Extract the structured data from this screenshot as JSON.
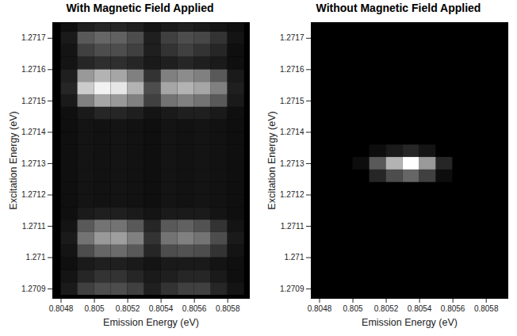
{
  "chart_data": [
    {
      "type": "heatmap",
      "title": "With Magnetic Field Applied",
      "x_label": "Emission Energy (eV)",
      "y_label": "Excitation Energy (eV)",
      "xlim": [
        0.80475,
        0.80593
      ],
      "ylim": [
        1.27087,
        1.27175
      ],
      "xticks": [
        0.8048,
        0.805,
        0.8052,
        0.8054,
        0.8056,
        0.8058
      ],
      "yticks": [
        1.2709,
        1.271,
        1.2711,
        1.2712,
        1.2713,
        1.2714,
        1.2715,
        1.2716,
        1.2717
      ],
      "zlim": [
        0,
        1
      ],
      "cells": {
        "x": [
          0.80485,
          0.80495,
          0.80505,
          0.80515,
          0.80525,
          0.80535,
          0.80545,
          0.80555,
          0.80565,
          0.80575,
          0.80585
        ],
        "y": [
          1.2709,
          1.27094,
          1.27098,
          1.27102,
          1.27106,
          1.2711,
          1.27114,
          1.27118,
          1.27122,
          1.27126,
          1.2713,
          1.27134,
          1.27138,
          1.27142,
          1.27146,
          1.2715,
          1.27154,
          1.27158,
          1.27162,
          1.27166,
          1.2717,
          1.27174
        ],
        "z": [
          [
            0.1,
            0.25,
            0.3,
            0.3,
            0.25,
            0.12,
            0.2,
            0.25,
            0.25,
            0.15,
            0.08
          ],
          [
            0.08,
            0.15,
            0.2,
            0.2,
            0.15,
            0.1,
            0.12,
            0.15,
            0.15,
            0.1,
            0.06
          ],
          [
            0.06,
            0.1,
            0.12,
            0.12,
            0.1,
            0.08,
            0.1,
            0.1,
            0.1,
            0.08,
            0.06
          ],
          [
            0.08,
            0.3,
            0.4,
            0.42,
            0.35,
            0.15,
            0.3,
            0.32,
            0.3,
            0.2,
            0.08
          ],
          [
            0.1,
            0.45,
            0.6,
            0.62,
            0.5,
            0.2,
            0.45,
            0.5,
            0.45,
            0.3,
            0.1
          ],
          [
            0.08,
            0.35,
            0.45,
            0.45,
            0.35,
            0.15,
            0.35,
            0.38,
            0.32,
            0.2,
            0.08
          ],
          [
            0.06,
            0.1,
            0.12,
            0.12,
            0.1,
            0.08,
            0.1,
            0.1,
            0.1,
            0.08,
            0.06
          ],
          [
            0.06,
            0.08,
            0.07,
            0.08,
            0.07,
            0.06,
            0.08,
            0.07,
            0.08,
            0.07,
            0.06
          ],
          [
            0.06,
            0.08,
            0.07,
            0.08,
            0.07,
            0.06,
            0.08,
            0.07,
            0.08,
            0.07,
            0.06
          ],
          [
            0.06,
            0.08,
            0.07,
            0.08,
            0.07,
            0.06,
            0.08,
            0.07,
            0.08,
            0.07,
            0.06
          ],
          [
            0.06,
            0.08,
            0.07,
            0.08,
            0.07,
            0.06,
            0.08,
            0.07,
            0.08,
            0.07,
            0.06
          ],
          [
            0.06,
            0.08,
            0.07,
            0.08,
            0.07,
            0.06,
            0.08,
            0.07,
            0.08,
            0.07,
            0.06
          ],
          [
            0.06,
            0.08,
            0.07,
            0.08,
            0.07,
            0.06,
            0.08,
            0.07,
            0.08,
            0.07,
            0.06
          ],
          [
            0.06,
            0.08,
            0.07,
            0.08,
            0.07,
            0.06,
            0.08,
            0.07,
            0.08,
            0.07,
            0.06
          ],
          [
            0.06,
            0.1,
            0.15,
            0.15,
            0.12,
            0.08,
            0.1,
            0.12,
            0.12,
            0.1,
            0.06
          ],
          [
            0.1,
            0.5,
            0.65,
            0.6,
            0.5,
            0.25,
            0.45,
            0.5,
            0.45,
            0.35,
            0.1
          ],
          [
            0.15,
            0.8,
            0.95,
            0.9,
            0.7,
            0.3,
            0.65,
            0.7,
            0.65,
            0.5,
            0.12
          ],
          [
            0.12,
            0.6,
            0.7,
            0.65,
            0.5,
            0.2,
            0.5,
            0.55,
            0.5,
            0.35,
            0.1
          ],
          [
            0.08,
            0.15,
            0.18,
            0.18,
            0.15,
            0.1,
            0.12,
            0.15,
            0.12,
            0.1,
            0.06
          ],
          [
            0.08,
            0.25,
            0.3,
            0.3,
            0.25,
            0.12,
            0.2,
            0.25,
            0.2,
            0.15,
            0.06
          ],
          [
            0.1,
            0.35,
            0.4,
            0.38,
            0.3,
            0.12,
            0.25,
            0.3,
            0.28,
            0.2,
            0.08
          ],
          [
            0.06,
            0.12,
            0.15,
            0.15,
            0.12,
            0.08,
            0.1,
            0.12,
            0.1,
            0.08,
            0.06
          ]
        ]
      }
    },
    {
      "type": "heatmap",
      "title": "Without Magnetic Field Applied",
      "x_label": "Emission Energy (eV)",
      "y_label": "Excitation Energy (eV)",
      "xlim": [
        0.80475,
        0.80593
      ],
      "ylim": [
        1.27087,
        1.27175
      ],
      "xticks": [
        0.805,
        0.8052,
        0.8054,
        0.8056,
        0.8058,
        0.8048
      ],
      "yticks": [
        1.2709,
        1.271,
        1.2711,
        1.2712,
        1.2713,
        1.2714,
        1.2715,
        1.2716,
        1.2717
      ],
      "zlim": [
        0,
        1
      ],
      "cells": {
        "x": [
          0.80485,
          0.80495,
          0.80505,
          0.80515,
          0.80525,
          0.80535,
          0.80545,
          0.80555,
          0.80565,
          0.80575,
          0.80585
        ],
        "y": [
          1.2709,
          1.27094,
          1.27098,
          1.27102,
          1.27106,
          1.2711,
          1.27114,
          1.27118,
          1.27122,
          1.27126,
          1.2713,
          1.27134,
          1.27138,
          1.27142,
          1.27146,
          1.2715,
          1.27154,
          1.27158,
          1.27162,
          1.27166,
          1.2717,
          1.27174
        ],
        "z": [
          [
            0,
            0,
            0,
            0,
            0,
            0,
            0,
            0,
            0,
            0,
            0
          ],
          [
            0,
            0,
            0,
            0,
            0,
            0,
            0,
            0,
            0,
            0,
            0
          ],
          [
            0,
            0,
            0,
            0,
            0,
            0,
            0,
            0,
            0,
            0,
            0
          ],
          [
            0,
            0,
            0,
            0,
            0,
            0,
            0,
            0,
            0,
            0,
            0
          ],
          [
            0,
            0,
            0,
            0,
            0,
            0,
            0,
            0,
            0,
            0,
            0
          ],
          [
            0,
            0,
            0,
            0,
            0,
            0,
            0,
            0,
            0,
            0,
            0
          ],
          [
            0,
            0,
            0,
            0,
            0,
            0,
            0,
            0,
            0,
            0,
            0
          ],
          [
            0,
            0,
            0,
            0,
            0,
            0,
            0,
            0,
            0,
            0,
            0
          ],
          [
            0,
            0,
            0,
            0,
            0,
            0,
            0,
            0,
            0,
            0,
            0
          ],
          [
            0,
            0,
            0,
            0.15,
            0.3,
            0.4,
            0.25,
            0.05,
            0,
            0,
            0
          ],
          [
            0,
            0,
            0.05,
            0.35,
            0.7,
            1,
            0.6,
            0.15,
            0,
            0,
            0
          ],
          [
            0,
            0,
            0,
            0.05,
            0.1,
            0.15,
            0.08,
            0,
            0,
            0,
            0
          ],
          [
            0,
            0,
            0,
            0,
            0,
            0,
            0,
            0,
            0,
            0,
            0
          ],
          [
            0,
            0,
            0,
            0,
            0,
            0,
            0,
            0,
            0,
            0,
            0
          ],
          [
            0,
            0,
            0,
            0,
            0,
            0,
            0,
            0,
            0,
            0,
            0
          ],
          [
            0,
            0,
            0,
            0,
            0,
            0,
            0,
            0,
            0,
            0,
            0
          ],
          [
            0,
            0,
            0,
            0,
            0,
            0,
            0,
            0,
            0,
            0,
            0
          ],
          [
            0,
            0,
            0,
            0,
            0,
            0,
            0,
            0,
            0,
            0,
            0
          ],
          [
            0,
            0,
            0,
            0,
            0,
            0,
            0,
            0,
            0,
            0,
            0
          ],
          [
            0,
            0,
            0,
            0,
            0,
            0,
            0,
            0,
            0,
            0,
            0
          ],
          [
            0,
            0,
            0,
            0,
            0,
            0,
            0,
            0,
            0,
            0,
            0
          ],
          [
            0,
            0,
            0,
            0,
            0,
            0,
            0,
            0,
            0,
            0,
            0
          ]
        ]
      }
    }
  ]
}
